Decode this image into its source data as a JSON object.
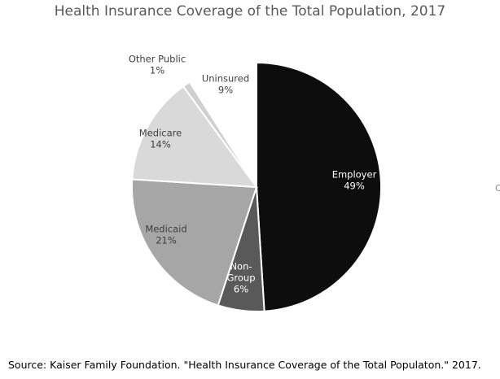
{
  "chart_data": {
    "type": "pie",
    "title": "Health Insurance Coverage of the Total Population, 2017",
    "slices": [
      {
        "label_lines": [
          "Employer"
        ],
        "value_label": "49%",
        "value": 49,
        "color": "#0d0d0d",
        "label_color": "#ffffff"
      },
      {
        "label_lines": [
          "Non-",
          "Group"
        ],
        "value_label": "6%",
        "value": 6,
        "color": "#595959",
        "label_color": "#ffffff"
      },
      {
        "label_lines": [
          "Medicaid"
        ],
        "value_label": "21%",
        "value": 21,
        "color": "#a6a6a6",
        "label_color": "#404040"
      },
      {
        "label_lines": [
          "Medicare"
        ],
        "value_label": "14%",
        "value": 14,
        "color": "#d9d9d9",
        "label_color": "#404040"
      },
      {
        "label_lines": [
          "Other Public"
        ],
        "value_label": "1%",
        "value": 1,
        "color": "#d0d0d0",
        "label_color": "#404040"
      },
      {
        "label_lines": [
          "Uninsured"
        ],
        "value_label": "9%",
        "value": 9,
        "color": "#ffffff",
        "label_color": "#404040"
      }
    ],
    "legend": "none"
  },
  "source": "Source: Kaiser Family Foundation. \"Health Insurance Coverage of the Total Populaton.\" 2017.",
  "edge_mark": "C"
}
